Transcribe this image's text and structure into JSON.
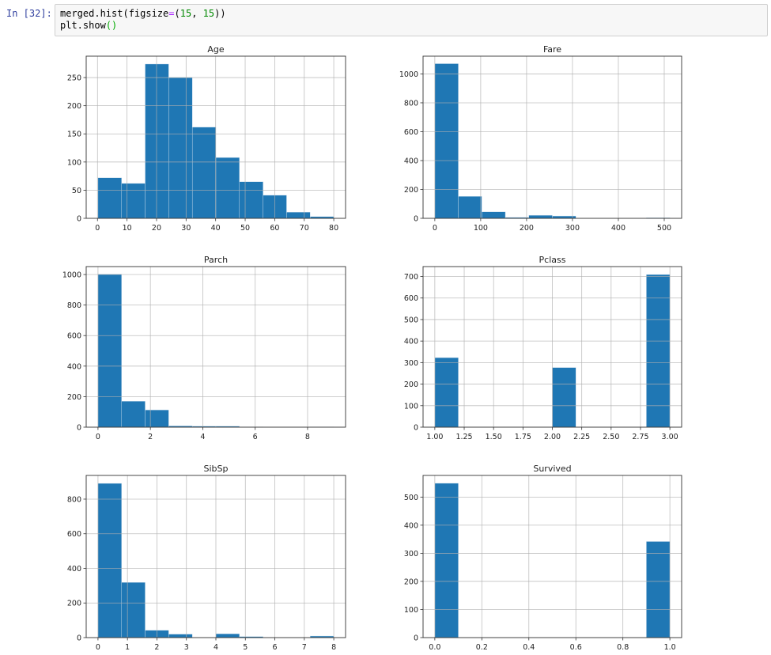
{
  "cell": {
    "prompt": "In [32]:",
    "code_line1": {
      "a": "merged.hist(figsize",
      "op": "=",
      "b": "(",
      "n1": "15",
      "c": ", ",
      "n2": "15",
      "d": "))"
    },
    "code_line2": {
      "a": "plt.show",
      "p": "()"
    }
  },
  "colors": {
    "bar": "#1f77b4",
    "grid": "#b0b0b0",
    "axis": "#333333"
  },
  "chart_data": [
    {
      "type": "bar",
      "title": "Age",
      "bin_range": [
        0.17,
        80
      ],
      "values": [
        72,
        62,
        274,
        250,
        162,
        108,
        65,
        41,
        11,
        3
      ],
      "xticks": [
        0,
        10,
        20,
        30,
        40,
        50,
        60,
        70,
        80
      ],
      "xtick_labels": [
        "0",
        "10",
        "20",
        "30",
        "40",
        "50",
        "60",
        "70",
        "80"
      ],
      "yticks": [
        0,
        50,
        100,
        150,
        200,
        250
      ],
      "ylim": [
        0,
        288
      ],
      "grid": true
    },
    {
      "type": "bar",
      "title": "Fare",
      "bin_range": [
        0,
        512.33
      ],
      "values": [
        1071,
        152,
        45,
        6,
        21,
        16,
        0,
        0,
        0,
        4
      ],
      "xticks": [
        0,
        100,
        200,
        300,
        400,
        500
      ],
      "xtick_labels": [
        "0",
        "100",
        "200",
        "300",
        "400",
        "500"
      ],
      "yticks": [
        0,
        200,
        400,
        600,
        800,
        1000
      ],
      "ylim": [
        0,
        1123
      ],
      "grid": true
    },
    {
      "type": "bar",
      "title": "Parch",
      "bin_range": [
        0,
        9
      ],
      "values": [
        1002,
        170,
        113,
        8,
        6,
        6,
        2,
        0,
        0,
        2
      ],
      "xticks": [
        0,
        2,
        4,
        6,
        8
      ],
      "xtick_labels": [
        "0",
        "2",
        "4",
        "6",
        "8"
      ],
      "yticks": [
        0,
        200,
        400,
        600,
        800,
        1000
      ],
      "ylim": [
        0,
        1052
      ],
      "grid": true
    },
    {
      "type": "bar",
      "title": "Pclass",
      "bin_range": [
        1,
        3
      ],
      "values": [
        323,
        0,
        0,
        0,
        0,
        277,
        0,
        0,
        0,
        709
      ],
      "xticks": [
        1,
        1.25,
        1.5,
        1.75,
        2,
        2.25,
        2.5,
        2.75,
        3
      ],
      "xtick_labels": [
        "1.00",
        "1.25",
        "1.50",
        "1.75",
        "2.00",
        "2.25",
        "2.50",
        "2.75",
        "3.00"
      ],
      "yticks": [
        0,
        100,
        200,
        300,
        400,
        500,
        600,
        700
      ],
      "ylim": [
        0,
        746
      ],
      "grid": true
    },
    {
      "type": "bar",
      "title": "SibSp",
      "bin_range": [
        0,
        8
      ],
      "values": [
        891,
        319,
        42,
        20,
        0,
        22,
        6,
        0,
        0,
        9
      ],
      "xticks": [
        0,
        1,
        2,
        3,
        4,
        5,
        6,
        7,
        8
      ],
      "xtick_labels": [
        "0",
        "1",
        "2",
        "3",
        "4",
        "5",
        "6",
        "7",
        "8"
      ],
      "yticks": [
        0,
        200,
        400,
        600,
        800
      ],
      "ylim": [
        0,
        937
      ],
      "grid": true
    },
    {
      "type": "bar",
      "title": "Survived",
      "bin_range": [
        0,
        1
      ],
      "values": [
        549,
        0,
        0,
        0,
        0,
        0,
        0,
        0,
        0,
        342
      ],
      "xticks": [
        0,
        0.2,
        0.4,
        0.6,
        0.8,
        1
      ],
      "xtick_labels": [
        "0.0",
        "0.2",
        "0.4",
        "0.6",
        "0.8",
        "1.0"
      ],
      "yticks": [
        0,
        100,
        200,
        300,
        400,
        500
      ],
      "ylim": [
        0,
        577
      ],
      "grid": true
    }
  ]
}
